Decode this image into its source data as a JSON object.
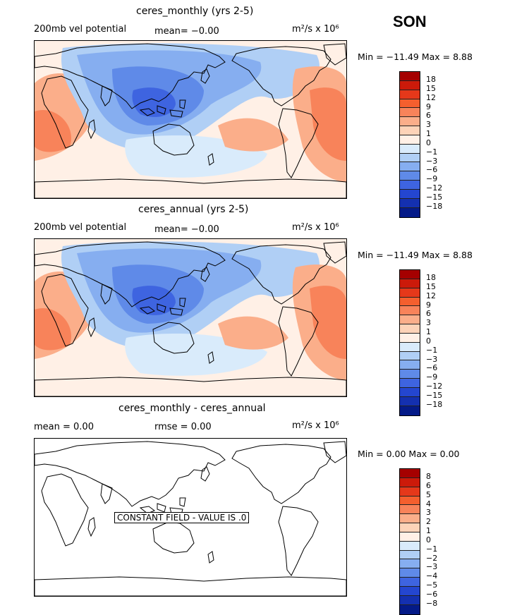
{
  "season": "SON",
  "panels": [
    {
      "title": "ceres_monthly (yrs 2-5)",
      "left_label": "200mb vel potential",
      "mid_label": "mean=  −0.00",
      "units": "m²/s x 10⁶",
      "minmax": "Min = −11.49  Max =   8.88",
      "field": "velocity-potential",
      "colorbar": {
        "colors": [
          "#a50000",
          "#cc1a0a",
          "#e5381a",
          "#f45f2e",
          "#f8835a",
          "#fbae8a",
          "#fdd3b8",
          "#fff0e6",
          "#d9ebfb",
          "#b0cff5",
          "#86aef0",
          "#5f8ae8",
          "#3e64e0",
          "#2446d0",
          "#1430b0",
          "#041a88"
        ],
        "ticks": [
          "18",
          "15",
          "12",
          "9",
          "6",
          "3",
          "1",
          "0",
          "−1",
          "−3",
          "−6",
          "−9",
          "−12",
          "−15",
          "−18"
        ]
      }
    },
    {
      "title": "ceres_annual (yrs 2-5)",
      "left_label": "200mb vel potential",
      "mid_label": "mean=  −0.00",
      "units": "m²/s x 10⁶",
      "minmax": "Min = −11.49  Max =   8.88",
      "field": "velocity-potential",
      "colorbar": {
        "colors": [
          "#a50000",
          "#cc1a0a",
          "#e5381a",
          "#f45f2e",
          "#f8835a",
          "#fbae8a",
          "#fdd3b8",
          "#fff0e6",
          "#d9ebfb",
          "#b0cff5",
          "#86aef0",
          "#5f8ae8",
          "#3e64e0",
          "#2446d0",
          "#1430b0",
          "#041a88"
        ],
        "ticks": [
          "18",
          "15",
          "12",
          "9",
          "6",
          "3",
          "1",
          "0",
          "−1",
          "−3",
          "−6",
          "−9",
          "−12",
          "−15",
          "−18"
        ]
      }
    },
    {
      "title": "ceres_monthly - ceres_annual",
      "left_label": "mean =   0.00",
      "mid_label": "rmse =   0.00",
      "units": "m²/s x 10⁶",
      "minmax": "Min =   0.00  Max =   0.00",
      "field": "constant",
      "constant_label": "CONSTANT FIELD - VALUE IS .0",
      "colorbar": {
        "colors": [
          "#a50000",
          "#cc1a0a",
          "#e5381a",
          "#f45f2e",
          "#f8835a",
          "#fbae8a",
          "#fdd3b8",
          "#fff0e6",
          "#d9ebfb",
          "#b0cff5",
          "#86aef0",
          "#5f8ae8",
          "#3e64e0",
          "#2446d0",
          "#1430b0",
          "#041a88"
        ],
        "ticks": [
          "8",
          "6",
          "5",
          "4",
          "3",
          "2",
          "1",
          "0",
          "−1",
          "−2",
          "−3",
          "−4",
          "−5",
          "−6",
          "−8"
        ]
      }
    }
  ]
}
